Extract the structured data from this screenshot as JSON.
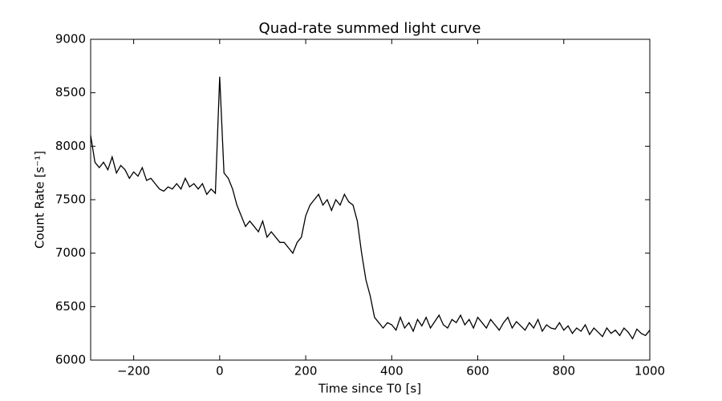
{
  "chart_data": {
    "type": "line",
    "title": "Quad-rate summed light curve",
    "xlabel": "Time since T0 [s]",
    "ylabel": "Count Rate [s⁻¹]",
    "xlim": [
      -300,
      1000
    ],
    "ylim": [
      6000,
      9000
    ],
    "xticks": [
      {
        "value": -200,
        "label": "−200"
      },
      0,
      200,
      400,
      600,
      800,
      1000
    ],
    "yticks": [
      6000,
      6500,
      7000,
      7500,
      8000,
      8500,
      9000
    ],
    "grid": false,
    "color": "#000000",
    "x": [
      -300,
      -290,
      -280,
      -270,
      -260,
      -250,
      -240,
      -230,
      -220,
      -210,
      -200,
      -190,
      -180,
      -170,
      -160,
      -150,
      -140,
      -130,
      -120,
      -110,
      -100,
      -90,
      -80,
      -70,
      -60,
      -50,
      -40,
      -30,
      -20,
      -10,
      0,
      10,
      20,
      30,
      40,
      50,
      60,
      70,
      80,
      90,
      100,
      110,
      120,
      130,
      140,
      150,
      160,
      170,
      180,
      190,
      200,
      210,
      220,
      230,
      240,
      250,
      260,
      270,
      280,
      290,
      300,
      310,
      320,
      330,
      340,
      350,
      360,
      370,
      380,
      390,
      400,
      410,
      420,
      430,
      440,
      450,
      460,
      470,
      480,
      490,
      500,
      510,
      520,
      530,
      540,
      550,
      560,
      570,
      580,
      590,
      600,
      610,
      620,
      630,
      640,
      650,
      660,
      670,
      680,
      690,
      700,
      710,
      720,
      730,
      740,
      750,
      760,
      770,
      780,
      790,
      800,
      810,
      820,
      830,
      840,
      850,
      860,
      870,
      880,
      890,
      900,
      910,
      920,
      930,
      940,
      950,
      960,
      970,
      980,
      990,
      1000
    ],
    "values": [
      8100,
      7850,
      7800,
      7850,
      7780,
      7900,
      7750,
      7820,
      7780,
      7700,
      7760,
      7720,
      7800,
      7680,
      7700,
      7650,
      7600,
      7580,
      7620,
      7600,
      7650,
      7600,
      7700,
      7620,
      7650,
      7600,
      7650,
      7550,
      7600,
      7560,
      8650,
      7750,
      7700,
      7600,
      7450,
      7350,
      7250,
      7300,
      7250,
      7200,
      7300,
      7150,
      7200,
      7150,
      7100,
      7100,
      7050,
      7000,
      7100,
      7150,
      7350,
      7450,
      7500,
      7550,
      7450,
      7500,
      7400,
      7500,
      7450,
      7550,
      7480,
      7450,
      7300,
      7000,
      6750,
      6600,
      6400,
      6350,
      6300,
      6350,
      6330,
      6280,
      6400,
      6300,
      6350,
      6270,
      6380,
      6320,
      6400,
      6300,
      6360,
      6420,
      6330,
      6300,
      6380,
      6350,
      6420,
      6330,
      6380,
      6300,
      6400,
      6350,
      6300,
      6380,
      6330,
      6280,
      6350,
      6400,
      6300,
      6360,
      6320,
      6280,
      6350,
      6300,
      6380,
      6270,
      6330,
      6300,
      6290,
      6350,
      6280,
      6320,
      6250,
      6300,
      6270,
      6330,
      6240,
      6300,
      6260,
      6220,
      6300,
      6250,
      6280,
      6230,
      6300,
      6260,
      6200,
      6290,
      6250,
      6230,
      6280
    ]
  }
}
